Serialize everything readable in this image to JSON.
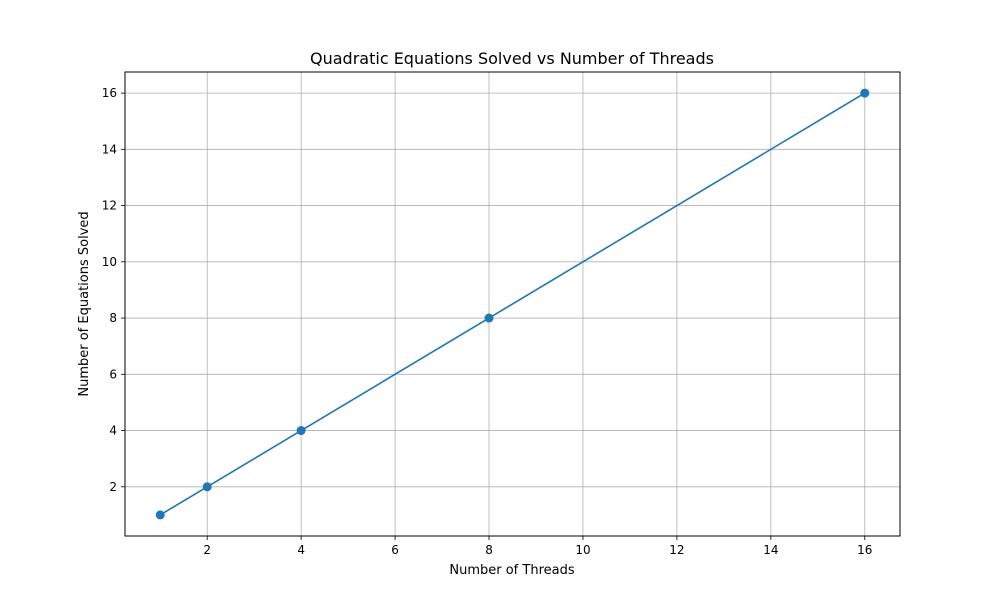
{
  "chart_data": {
    "type": "line",
    "title": "Quadratic Equations Solved vs Number of Threads",
    "xlabel": "Number of Threads",
    "ylabel": "Number of Equations Solved",
    "x": [
      1,
      2,
      4,
      8,
      16
    ],
    "series": [
      {
        "values": [
          1,
          2,
          4,
          8,
          16
        ],
        "color": "#1f77b4",
        "marker": "circle"
      }
    ],
    "xlim": [
      0.25,
      16.75
    ],
    "ylim": [
      0.25,
      16.75
    ],
    "xticks": [
      2,
      4,
      6,
      8,
      10,
      12,
      14,
      16
    ],
    "yticks": [
      2,
      4,
      6,
      8,
      10,
      12,
      14,
      16
    ],
    "grid": true,
    "grid_color": "#b0b0b0"
  }
}
